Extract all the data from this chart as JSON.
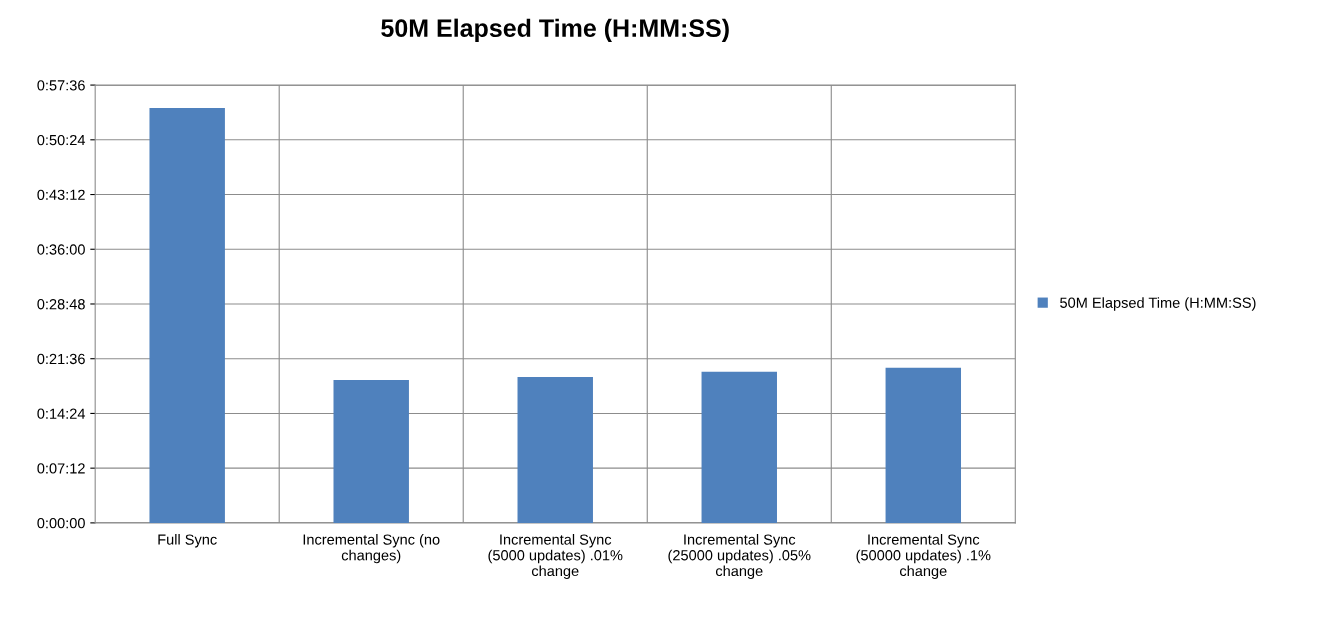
{
  "chart_data": {
    "type": "bar",
    "title": "50M Elapsed Time (H:MM:SS)",
    "categories": [
      "Full Sync",
      "Incremental Sync (no\nchanges)",
      "Incremental Sync\n(5000 updates) .01%\nchange",
      "Incremental Sync\n(25000 updates) .05%\nchange",
      "Incremental Sync\n(50000 updates) .1%\nchange"
    ],
    "series": [
      {
        "name": "50M Elapsed Time (H:MM:SS)",
        "color": "#4f81bd",
        "values": [
          54.6,
          18.8,
          19.2,
          19.9,
          20.4
        ]
      }
    ],
    "ylim": [
      0,
      57.6
    ],
    "yticks": [
      {
        "value": 0,
        "label": "0:00:00"
      },
      {
        "value": 7.2,
        "label": "0:07:12"
      },
      {
        "value": 14.4,
        "label": "0:14:24"
      },
      {
        "value": 21.6,
        "label": "0:21:36"
      },
      {
        "value": 28.8,
        "label": "0:28:48"
      },
      {
        "value": 36,
        "label": "0:36:00"
      },
      {
        "value": 43.2,
        "label": "0:43:12"
      },
      {
        "value": 50.4,
        "label": "0:50:24"
      },
      {
        "value": 57.6,
        "label": "0:57:36"
      }
    ],
    "grid": true,
    "legend": "right"
  }
}
